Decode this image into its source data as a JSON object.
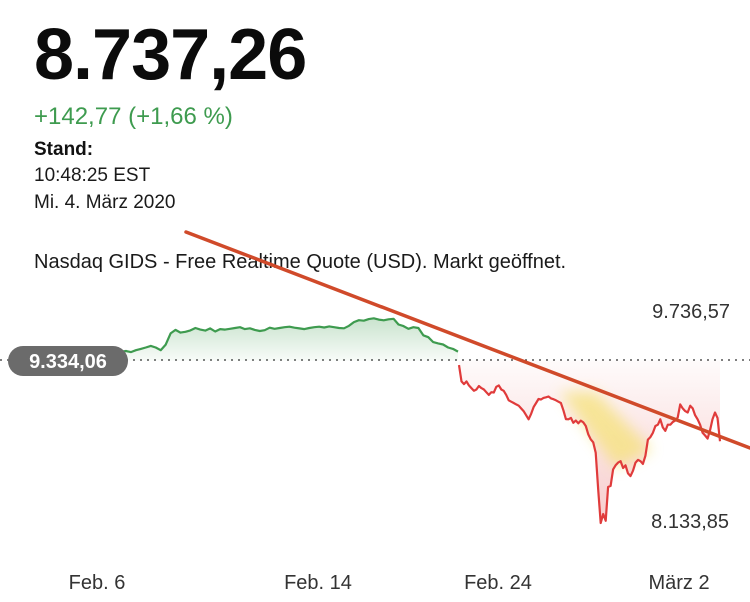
{
  "quote": {
    "price": "8.737,26",
    "change": "+142,77 (+1,66 %)",
    "stand_label": "Stand:",
    "time": "10:48:25 EST",
    "date": "Mi. 4. März 2020",
    "source": "Nasdaq GIDS - Free Realtime Quote (USD). Markt geöffnet."
  },
  "colors": {
    "up": "#3e9b4f",
    "down": "#e03b3b",
    "trendline": "#d04a2a",
    "highlight": "#f5e27a",
    "badge": "#6b6b6b"
  },
  "chart_data": {
    "type": "line",
    "x_tick_labels": [
      "Feb. 6",
      "Feb. 14",
      "Feb. 24",
      "März 2"
    ],
    "y_high_label": "9.736,57",
    "y_low_label": "8.133,85",
    "reference_label": "9.334,06",
    "reference_value": 9334.06,
    "ylim": [
      8133.85,
      9736.57
    ],
    "series": [
      {
        "segment": "up",
        "values": [
          9310,
          9334,
          9340,
          9358,
          9352,
          9346,
          9360,
          9372,
          9385,
          9380,
          9365,
          9378,
          9395,
          9410,
          9398,
          9390,
          9384,
          9392,
          9400,
          9396,
          9388,
          9402,
          9398,
          9404,
          9396,
          9410,
          9420,
          9430,
          9442,
          9430,
          9410,
          9450,
          9534,
          9560,
          9540,
          9546,
          9556,
          9574,
          9562,
          9555,
          9571,
          9548,
          9566,
          9562,
          9568,
          9574,
          9580,
          9566,
          9572,
          9560,
          9552,
          9558,
          9576,
          9568,
          9574,
          9580,
          9584,
          9576,
          9571,
          9566,
          9574,
          9580,
          9584,
          9578,
          9586,
          9580,
          9574,
          9572,
          9590,
          9618,
          9632,
          9628,
          9640,
          9646,
          9636,
          9631,
          9638,
          9642,
          9600,
          9588,
          9568,
          9580,
          9574,
          9520,
          9506,
          9470,
          9460,
          9452,
          9430,
          9420,
          9400
        ]
      },
      {
        "segment": "down",
        "values": [
          9300,
          9180,
          9160,
          9180,
          9150,
          9130,
          9110,
          9120,
          9146,
          9130,
          9120,
          9100,
          9080,
          9100,
          9098,
          9140,
          9150,
          9120,
          9110,
          9080,
          9040,
          9030,
          9020,
          9010,
          9000,
          8980,
          8960,
          8930,
          8900,
          8940,
          8990,
          9020,
          9050,
          9046,
          9058,
          9062,
          9068,
          9054,
          9048,
          9040,
          9030,
          9020,
          8966,
          8901,
          8900,
          8910,
          8874,
          8891,
          8870,
          8890,
          8877,
          8850,
          8788,
          8752,
          8730,
          8653,
          8380,
          8133.85,
          8200,
          8150,
          8400,
          8408,
          8530,
          8560,
          8580,
          8590,
          8540,
          8560,
          8500,
          8480,
          8520,
          8580,
          8600,
          8590,
          8570,
          8630,
          8750,
          8768,
          8800,
          8850,
          8860,
          8900,
          8840,
          8814,
          8860,
          8860,
          8880,
          8890,
          8912,
          9010,
          8980,
          8960,
          8950,
          9000,
          8980,
          8930,
          8900,
          8860,
          8800,
          8780,
          8757,
          8820,
          8900,
          8950,
          8910,
          8737.26
        ]
      }
    ]
  }
}
